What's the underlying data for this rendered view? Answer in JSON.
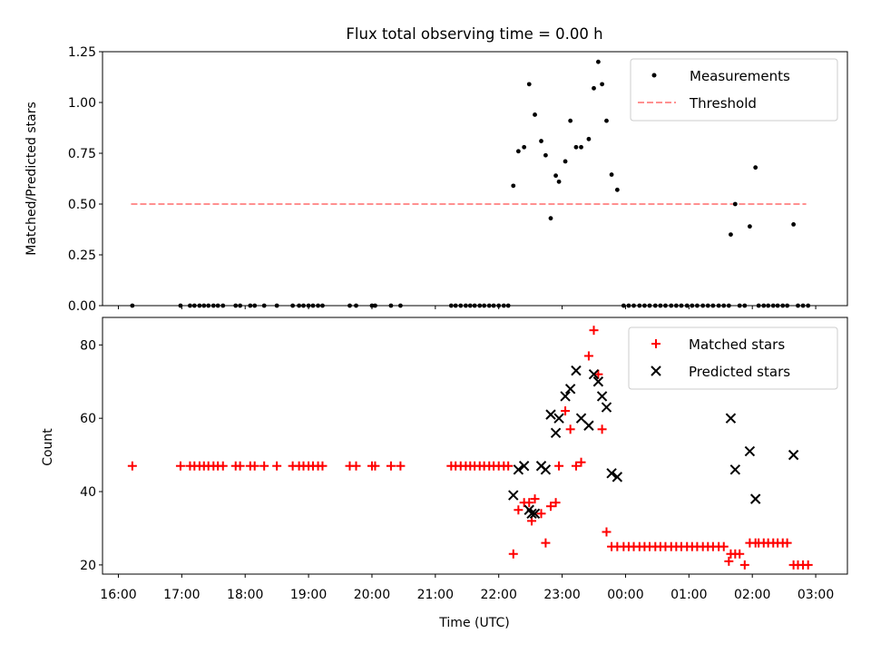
{
  "chart_data": [
    {
      "type": "scatter",
      "title": "Flux total observing time = 0.00 h",
      "ylabel": "Matched/Predicted stars",
      "xlabel": "",
      "ylim": [
        0,
        1.25
      ],
      "yticks": [
        0.0,
        0.25,
        0.5,
        0.75,
        1.0,
        1.25
      ],
      "ytick_labels": [
        "0.00",
        "0.25",
        "0.50",
        "0.75",
        "1.00",
        "1.25"
      ],
      "legend_position": "top-right",
      "legend": {
        "measurements": "Measurements",
        "threshold": "Threshold"
      },
      "threshold": {
        "value": 0.5,
        "x_start": 16.2,
        "x_end": 26.85,
        "color": "#ff8080"
      },
      "series": [
        {
          "name": "Measurements",
          "color": "#000000",
          "x": [
            16.22,
            16.98,
            17.13,
            17.2,
            17.28,
            17.35,
            17.42,
            17.5,
            17.57,
            17.65,
            17.85,
            17.92,
            18.08,
            18.15,
            18.3,
            18.5,
            18.75,
            18.85,
            18.92,
            19.0,
            19.07,
            19.15,
            19.22,
            19.65,
            19.75,
            20.0,
            20.05,
            20.3,
            20.45,
            21.25,
            21.32,
            21.4,
            21.48,
            21.55,
            21.62,
            21.7,
            21.77,
            21.85,
            21.92,
            22.0,
            22.08,
            22.15,
            22.23,
            22.31,
            22.4,
            22.48,
            22.57,
            22.67,
            22.74,
            22.82,
            22.9,
            22.95,
            23.05,
            23.13,
            23.22,
            23.3,
            23.42,
            23.5,
            23.57,
            23.63,
            23.7,
            23.78,
            23.87,
            23.97,
            24.05,
            24.13,
            24.22,
            24.3,
            24.38,
            24.47,
            24.55,
            24.63,
            24.72,
            24.8,
            24.88,
            24.97,
            25.05,
            25.13,
            25.22,
            25.3,
            25.38,
            25.47,
            25.55,
            25.63,
            25.66,
            25.73,
            25.8,
            25.88,
            25.96,
            26.05,
            26.1,
            26.18,
            26.25,
            26.33,
            26.4,
            26.48,
            26.55,
            26.65,
            26.72,
            26.8,
            26.88
          ],
          "y": [
            0,
            0,
            0,
            0,
            0,
            0,
            0,
            0,
            0,
            0,
            0,
            0,
            0,
            0,
            0,
            0,
            0,
            0,
            0,
            0,
            0,
            0,
            0,
            0,
            0,
            0,
            0,
            0,
            0,
            0,
            0,
            0,
            0,
            0,
            0,
            0,
            0,
            0,
            0,
            0,
            0,
            0,
            0.59,
            0.76,
            0.78,
            1.09,
            0.94,
            0.81,
            0.74,
            0.43,
            0.64,
            0.61,
            0.71,
            0.91,
            0.78,
            0.78,
            0.82,
            1.07,
            1.2,
            1.09,
            0.91,
            0.645,
            0.57,
            0,
            0,
            0,
            0,
            0,
            0,
            0,
            0,
            0,
            0,
            0,
            0,
            0,
            0,
            0,
            0,
            0,
            0,
            0,
            0,
            0,
            0.35,
            0.5,
            0,
            0,
            0.39,
            0.68,
            0,
            0,
            0,
            0,
            0,
            0,
            0,
            0.4,
            0,
            0,
            0
          ]
        }
      ]
    },
    {
      "type": "scatter",
      "title": "",
      "ylabel": "Count",
      "xlabel": "Time (UTC)",
      "ylim": [
        17.5,
        87.5
      ],
      "yticks": [
        20,
        40,
        60,
        80
      ],
      "ytick_labels": [
        "20",
        "40",
        "60",
        "80"
      ],
      "xlim": [
        15.75,
        27.5
      ],
      "xticks": [
        16,
        17,
        18,
        19,
        20,
        21,
        22,
        23,
        24,
        25,
        26,
        27
      ],
      "xtick_labels": [
        "16:00",
        "17:00",
        "18:00",
        "19:00",
        "20:00",
        "21:00",
        "22:00",
        "23:00",
        "00:00",
        "01:00",
        "02:00",
        "03:00"
      ],
      "legend_position": "top-right",
      "legend": {
        "matched": "Matched stars",
        "predicted": "Predicted stars"
      },
      "series": [
        {
          "name": "Matched stars",
          "marker": "plus",
          "color": "#ff0000",
          "x": [
            16.22,
            16.98,
            17.13,
            17.2,
            17.28,
            17.35,
            17.42,
            17.5,
            17.57,
            17.65,
            17.85,
            17.92,
            18.08,
            18.15,
            18.3,
            18.5,
            18.75,
            18.85,
            18.92,
            19.0,
            19.07,
            19.15,
            19.22,
            19.65,
            19.75,
            20.0,
            20.05,
            20.3,
            20.45,
            21.25,
            21.32,
            21.4,
            21.48,
            21.55,
            21.62,
            21.7,
            21.77,
            21.85,
            21.92,
            22.0,
            22.08,
            22.15,
            22.23,
            22.31,
            22.4,
            22.48,
            22.52,
            22.57,
            22.67,
            22.74,
            22.82,
            22.9,
            22.95,
            23.05,
            23.13,
            23.22,
            23.3,
            23.42,
            23.5,
            23.57,
            23.63,
            23.7,
            23.78,
            23.87,
            23.97,
            24.05,
            24.13,
            24.22,
            24.3,
            24.38,
            24.47,
            24.55,
            24.63,
            24.72,
            24.8,
            24.88,
            24.97,
            25.05,
            25.13,
            25.22,
            25.3,
            25.38,
            25.47,
            25.55,
            25.63,
            25.66,
            25.73,
            25.8,
            25.88,
            25.96,
            26.05,
            26.1,
            26.18,
            26.25,
            26.33,
            26.4,
            26.48,
            26.55,
            26.65,
            26.72,
            26.8,
            26.88
          ],
          "y": [
            47,
            47,
            47,
            47,
            47,
            47,
            47,
            47,
            47,
            47,
            47,
            47,
            47,
            47,
            47,
            47,
            47,
            47,
            47,
            47,
            47,
            47,
            47,
            47,
            47,
            47,
            47,
            47,
            47,
            47,
            47,
            47,
            47,
            47,
            47,
            47,
            47,
            47,
            47,
            47,
            47,
            47,
            23,
            35,
            37,
            37,
            32,
            38,
            34,
            26,
            36,
            37,
            47,
            62,
            57,
            47,
            48,
            77,
            84,
            72,
            57,
            29,
            25,
            25,
            25,
            25,
            25,
            25,
            25,
            25,
            25,
            25,
            25,
            25,
            25,
            25,
            25,
            25,
            25,
            25,
            25,
            25,
            25,
            25,
            21,
            23,
            23,
            23,
            20,
            26,
            26,
            26,
            26,
            26,
            26,
            26,
            26,
            26,
            20,
            20,
            20,
            20
          ]
        },
        {
          "name": "Predicted stars",
          "marker": "cross",
          "color": "#000000",
          "x": [
            22.23,
            22.31,
            22.4,
            22.48,
            22.52,
            22.57,
            22.67,
            22.74,
            22.82,
            22.9,
            22.95,
            23.05,
            23.13,
            23.22,
            23.3,
            23.42,
            23.5,
            23.57,
            23.63,
            23.7,
            23.78,
            23.87,
            25.66,
            25.73,
            25.96,
            26.05,
            26.65
          ],
          "y": [
            39,
            46,
            47,
            35,
            34,
            34,
            47,
            46,
            61,
            56,
            60,
            66,
            68,
            73,
            60,
            58,
            72,
            70,
            66,
            63,
            45,
            44,
            60,
            46,
            51,
            38,
            50
          ]
        }
      ]
    }
  ]
}
